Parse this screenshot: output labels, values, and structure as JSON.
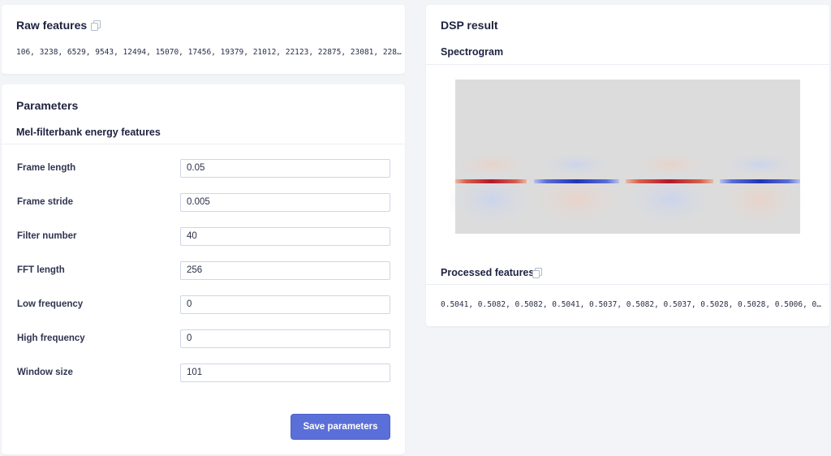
{
  "raw_features": {
    "title": "Raw features",
    "copy_icon": "copy-icon",
    "values_text": "106, 3238, 6529, 9543, 12494, 15070, 17456, 19379, 21012, 22123, 22875, 23081, 228…"
  },
  "parameters": {
    "title": "Parameters",
    "subtitle": "Mel-filterbank energy features",
    "fields": [
      {
        "label": "Frame length",
        "value": "0.05"
      },
      {
        "label": "Frame stride",
        "value": "0.005"
      },
      {
        "label": "Filter number",
        "value": "40"
      },
      {
        "label": "FFT length",
        "value": "256"
      },
      {
        "label": "Low frequency",
        "value": "0"
      },
      {
        "label": "High frequency",
        "value": "0"
      },
      {
        "label": "Window size",
        "value": "101"
      }
    ],
    "save_label": "Save parameters"
  },
  "dsp_result": {
    "title": "DSP result",
    "spectrogram_label": "Spectrogram",
    "processed_title": "Processed features",
    "copy_icon": "copy-icon",
    "processed_text": "0.5041, 0.5082, 0.5082, 0.5041, 0.5037, 0.5082, 0.5037, 0.5028, 0.5028, 0.5006, 0…"
  },
  "colors": {
    "accent": "#5b6fd8",
    "background": "#f3f4f8",
    "spectrogram_red": "#b2182b",
    "spectrogram_blue": "#2134b8"
  }
}
